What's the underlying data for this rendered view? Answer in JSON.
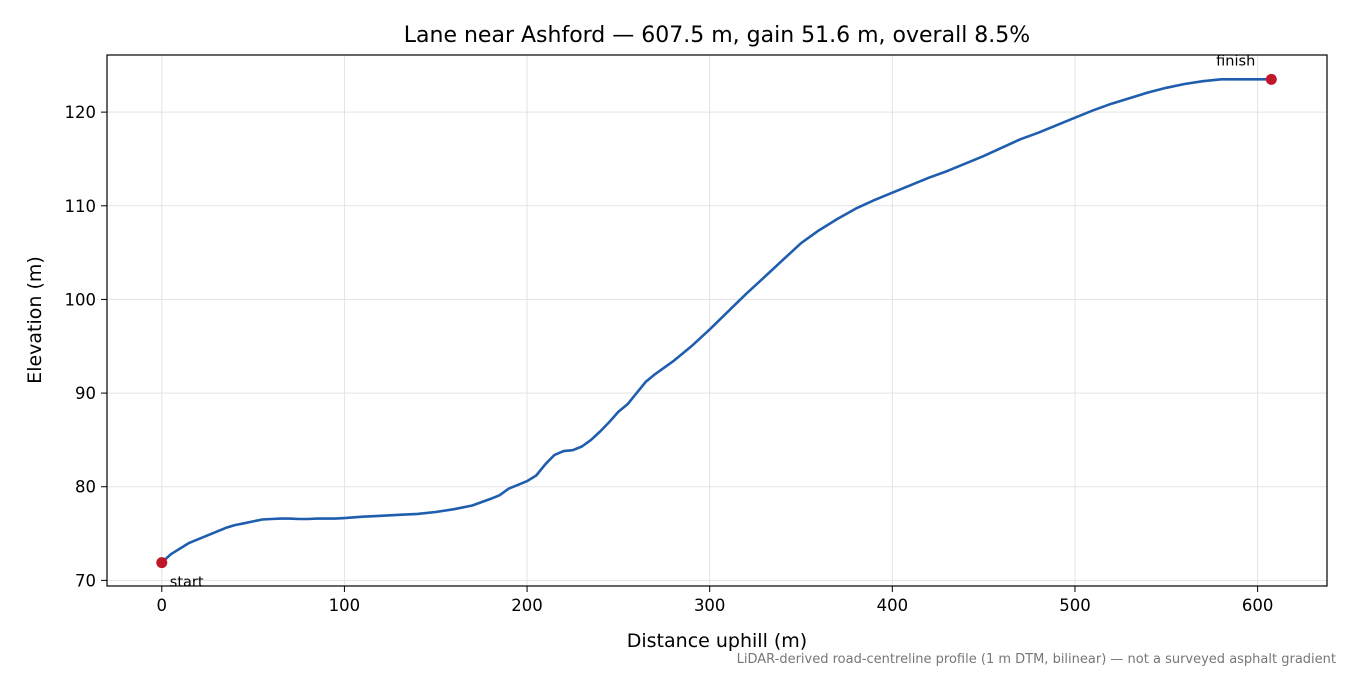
{
  "chart_data": {
    "type": "line",
    "title": "Lane near Ashford — 607.5 m, gain 51.6 m, overall 8.5%",
    "xlabel": "Distance uphill (m)",
    "ylabel": "Elevation (m)",
    "xlim": [
      -30,
      638
    ],
    "ylim": [
      69.4,
      126.1
    ],
    "xticks": [
      0,
      100,
      200,
      300,
      400,
      500,
      600
    ],
    "yticks": [
      70,
      80,
      90,
      100,
      110,
      120
    ],
    "grid": true,
    "line_color": "#1f5eae",
    "marker_color": "#c0182a",
    "series": [
      {
        "x": [
          0,
          5,
          10,
          15,
          20,
          25,
          30,
          35,
          40,
          45,
          50,
          55,
          60,
          65,
          70,
          75,
          80,
          85,
          90,
          95,
          100,
          110,
          120,
          130,
          140,
          150,
          160,
          170,
          180,
          185,
          190,
          195,
          200,
          205,
          210,
          215,
          220,
          225,
          230,
          235,
          240,
          245,
          250,
          255,
          260,
          265,
          270,
          280,
          290,
          300,
          310,
          320,
          330,
          340,
          350,
          360,
          370,
          380,
          390,
          400,
          410,
          420,
          430,
          440,
          450,
          460,
          470,
          480,
          490,
          500,
          510,
          520,
          530,
          540,
          550,
          560,
          570,
          580,
          590,
          600,
          607.5
        ],
        "y": [
          71.9,
          72.8,
          73.4,
          74.0,
          74.4,
          74.8,
          75.2,
          75.6,
          75.9,
          76.1,
          76.3,
          76.5,
          76.55,
          76.6,
          76.6,
          76.55,
          76.55,
          76.6,
          76.6,
          76.6,
          76.65,
          76.8,
          76.9,
          77.0,
          77.1,
          77.3,
          77.6,
          78.0,
          78.7,
          79.1,
          79.8,
          80.2,
          80.6,
          81.2,
          82.4,
          83.4,
          83.8,
          83.9,
          84.3,
          85.0,
          85.9,
          86.9,
          88.0,
          88.8,
          90.0,
          91.2,
          92.0,
          93.4,
          95.0,
          96.8,
          98.7,
          100.6,
          102.4,
          104.2,
          106.0,
          107.4,
          108.6,
          109.7,
          110.6,
          111.4,
          112.2,
          113.0,
          113.7,
          114.5,
          115.3,
          116.2,
          117.1,
          117.8,
          118.6,
          119.4,
          120.2,
          120.9,
          121.5,
          122.1,
          122.6,
          123.0,
          123.3,
          123.5,
          123.5,
          123.5,
          123.5
        ]
      }
    ],
    "annotations": [
      {
        "text": "start",
        "x": 0,
        "y": 71.9
      },
      {
        "text": "finish",
        "x": 607.5,
        "y": 123.5
      }
    ]
  },
  "footer_note": "LiDAR-derived road-centreline profile (1 m DTM, bilinear) — not a surveyed asphalt gradient"
}
